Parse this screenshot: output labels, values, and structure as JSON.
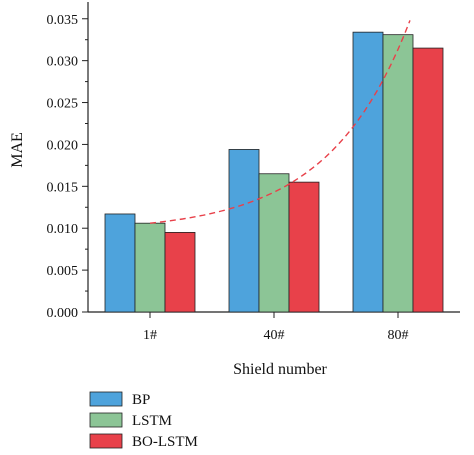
{
  "chart_data": {
    "type": "bar",
    "xlabel": "Shield number",
    "ylabel": "MAE",
    "categories": [
      "1#",
      "40#",
      "80#"
    ],
    "series": [
      {
        "name": "BP",
        "values": [
          0.0117,
          0.0194,
          0.0334
        ],
        "color": "#4ea3dc"
      },
      {
        "name": "LSTM",
        "values": [
          0.0106,
          0.0165,
          0.0331
        ],
        "color": "#8cc596"
      },
      {
        "name": "BO-LSTM",
        "values": [
          0.0095,
          0.0155,
          0.0315
        ],
        "color": "#e8414a"
      }
    ],
    "ylim": [
      0,
      0.037
    ],
    "yticks": [
      "0.000",
      "0.005",
      "0.010",
      "0.015",
      "0.020",
      "0.025",
      "0.030",
      "0.035"
    ],
    "trend_line": {
      "style": "dashed",
      "color": "#e8414a"
    },
    "legend_position": "bottom-left",
    "grid": false
  }
}
